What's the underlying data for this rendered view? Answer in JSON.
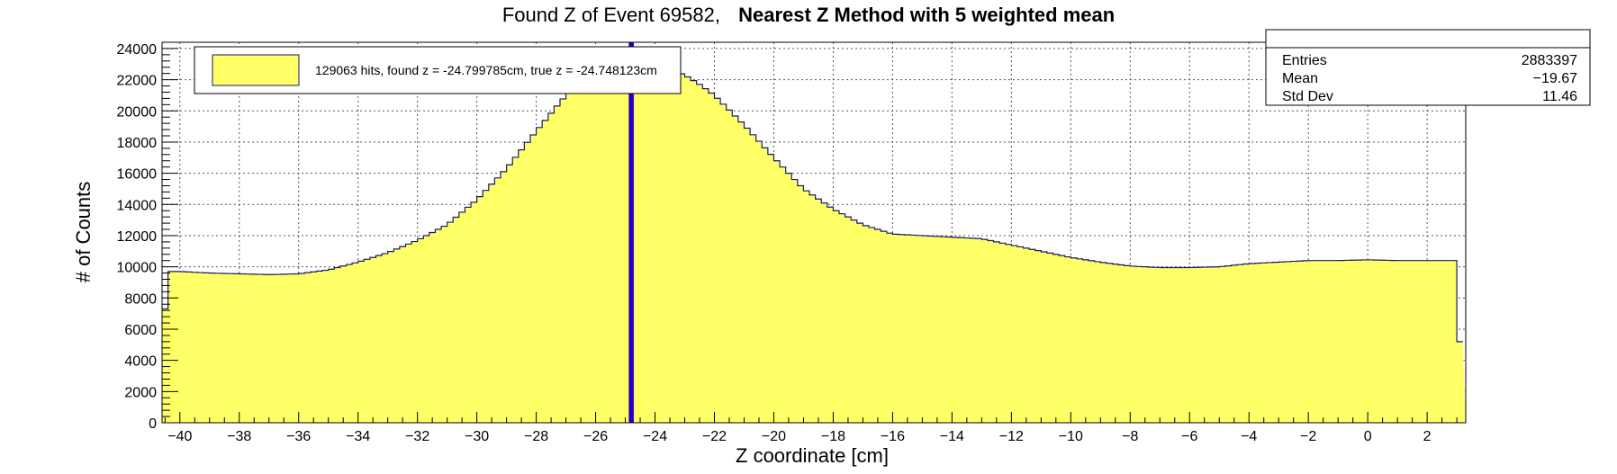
{
  "chart_data": {
    "type": "histogram",
    "title_prefix": "Found Z of Event 69582,",
    "title_bold": "Nearest Z Method with 5 weighted mean",
    "xlabel": "Z coordinate [cm]",
    "ylabel": "# of Counts",
    "xlim": [
      -40.6,
      3.3
    ],
    "ylim": [
      0,
      24400
    ],
    "x_ticks": [
      -40,
      -38,
      -36,
      -34,
      -32,
      -30,
      -28,
      -26,
      -24,
      -22,
      -20,
      -18,
      -16,
      -14,
      -12,
      -10,
      -8,
      -6,
      -4,
      -2,
      0,
      2
    ],
    "y_ticks": [
      0,
      2000,
      4000,
      6000,
      8000,
      10000,
      12000,
      14000,
      16000,
      18000,
      20000,
      22000,
      24000
    ],
    "grid": true,
    "fill_color": "#ffff66",
    "line_color": "#1a1a66",
    "marker_color": "#0000ff",
    "marker_edge_color": "#cc0000",
    "bin_width": 0.2,
    "found_z": -24.799785,
    "true_z": -24.748123,
    "profile_x": [
      -40.6,
      -40.4,
      -40.0,
      -39.0,
      -38.0,
      -37.0,
      -36.0,
      -35.0,
      -34.0,
      -33.0,
      -32.0,
      -31.0,
      -30.0,
      -29.0,
      -28.0,
      -27.0,
      -26.0,
      -25.4,
      -25.0,
      -24.8,
      -24.5,
      -24.0,
      -23.5,
      -23.0,
      -22.5,
      -22.0,
      -21.0,
      -20.0,
      -19.0,
      -18.0,
      -17.0,
      -16.0,
      -15.0,
      -14.0,
      -13.0,
      -12.0,
      -11.0,
      -10.0,
      -9.0,
      -8.0,
      -7.0,
      -6.0,
      -5.0,
      -4.0,
      -3.0,
      -2.0,
      -1.0,
      0.0,
      1.0,
      2.0,
      3.0,
      3.1,
      3.3
    ],
    "profile_y": [
      4900,
      9700,
      9700,
      9600,
      9550,
      9500,
      9550,
      9800,
      10300,
      10900,
      11700,
      12700,
      14300,
      16300,
      18700,
      21000,
      22500,
      23300,
      23600,
      23700,
      23600,
      23200,
      22700,
      22300,
      21700,
      21000,
      19100,
      17000,
      15000,
      13700,
      12700,
      12100,
      12000,
      11900,
      11800,
      11400,
      11000,
      10600,
      10300,
      10050,
      9950,
      9950,
      10000,
      10200,
      10300,
      10400,
      10400,
      10450,
      10400,
      10400,
      10400,
      5200,
      5200
    ],
    "legend": {
      "position": "top-left",
      "label": "129063 hits, found z = -24.799785cm, true z = -24.748123cm"
    },
    "stats": {
      "position": "top-right",
      "rows": [
        {
          "label": "Entries",
          "value": "2883397"
        },
        {
          "label": "Mean",
          "value": "−19.67"
        },
        {
          "label": "Std Dev",
          "value": "11.46"
        }
      ]
    }
  }
}
